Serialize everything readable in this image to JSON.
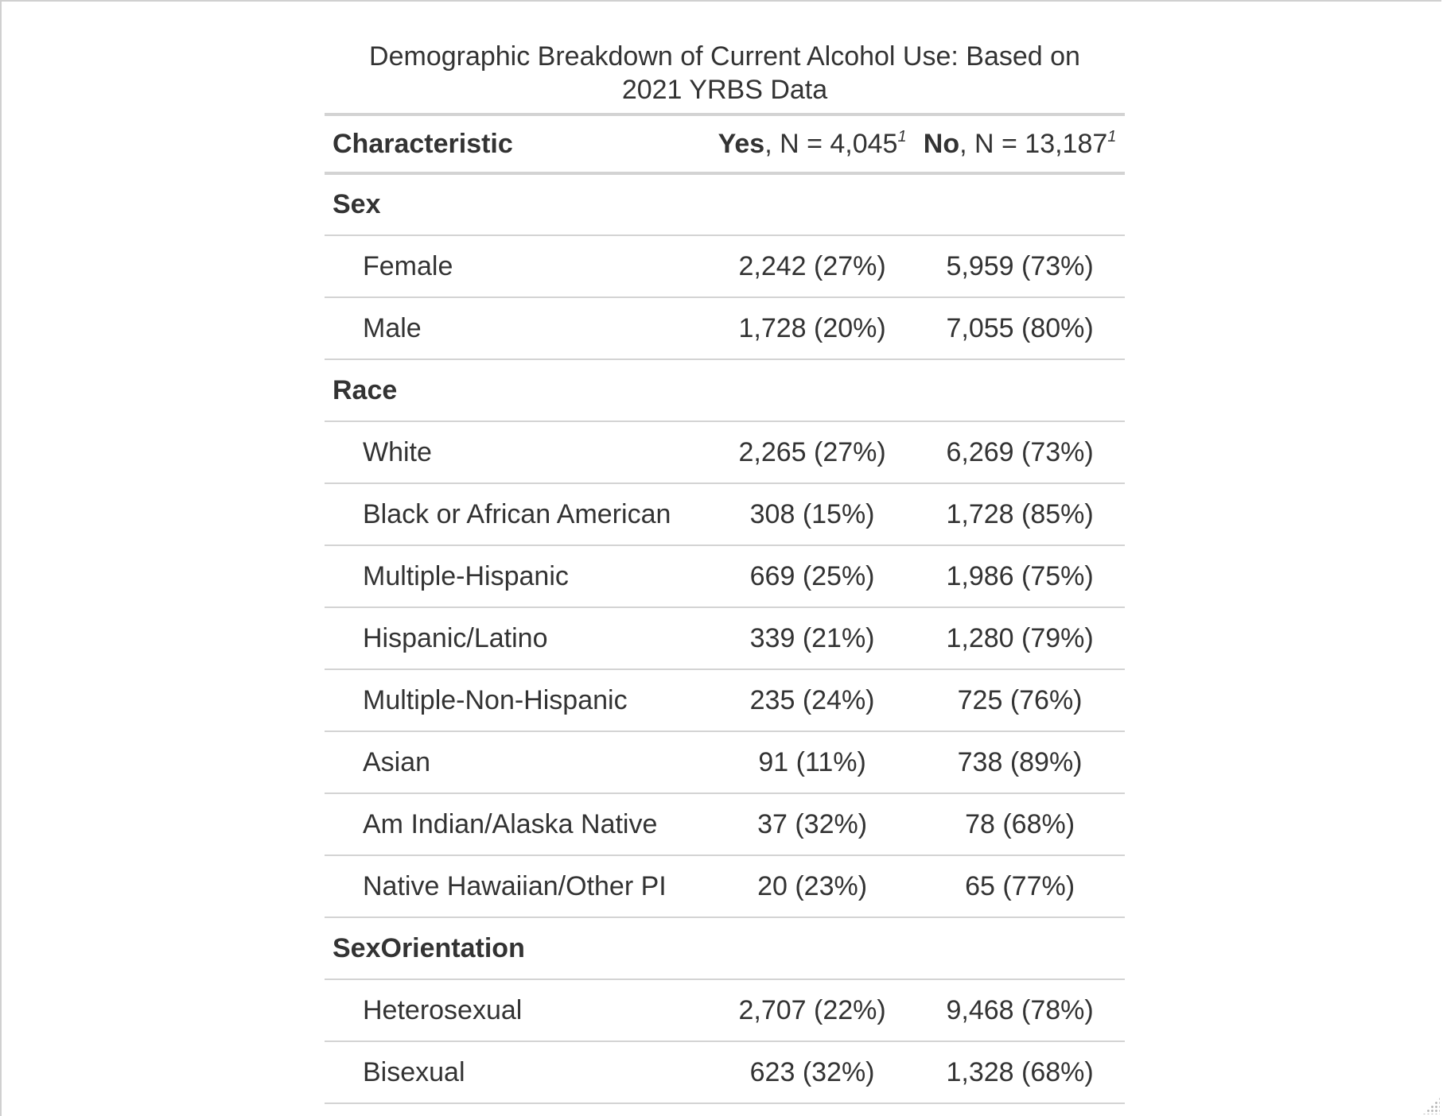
{
  "table": {
    "caption": "Demographic Breakdown of Current Alcohol Use: Based on 2021 YRBS Data",
    "header": {
      "characteristic": "Characteristic",
      "yes_label": "Yes",
      "yes_n": ", N = 4,045",
      "no_label": "No",
      "no_n": ", N = 13,187",
      "footnote_mark": "1"
    },
    "groups": [
      {
        "name": "Sex",
        "rows": [
          {
            "label": "Female",
            "yes": "2,242 (27%)",
            "no": "5,959 (73%)"
          },
          {
            "label": "Male",
            "yes": "1,728 (20%)",
            "no": "7,055 (80%)"
          }
        ]
      },
      {
        "name": "Race",
        "rows": [
          {
            "label": "White",
            "yes": "2,265 (27%)",
            "no": "6,269 (73%)"
          },
          {
            "label": "Black or African American",
            "yes": "308 (15%)",
            "no": "1,728 (85%)"
          },
          {
            "label": "Multiple-Hispanic",
            "yes": "669 (25%)",
            "no": "1,986 (75%)"
          },
          {
            "label": "Hispanic/Latino",
            "yes": "339 (21%)",
            "no": "1,280 (79%)"
          },
          {
            "label": "Multiple-Non-Hispanic",
            "yes": "235 (24%)",
            "no": "725 (76%)"
          },
          {
            "label": "Asian",
            "yes": "91 (11%)",
            "no": "738 (89%)"
          },
          {
            "label": "Am Indian/Alaska Native",
            "yes": "37 (32%)",
            "no": "78 (68%)"
          },
          {
            "label": "Native Hawaiian/Other PI",
            "yes": "20 (23%)",
            "no": "65 (77%)"
          }
        ]
      },
      {
        "name": "SexOrientation",
        "rows": [
          {
            "label": "Heterosexual",
            "yes": "2,707 (22%)",
            "no": "9,468 (78%)"
          },
          {
            "label": "Bisexual",
            "yes": "623 (32%)",
            "no": "1,328 (68%)"
          }
        ]
      }
    ]
  }
}
